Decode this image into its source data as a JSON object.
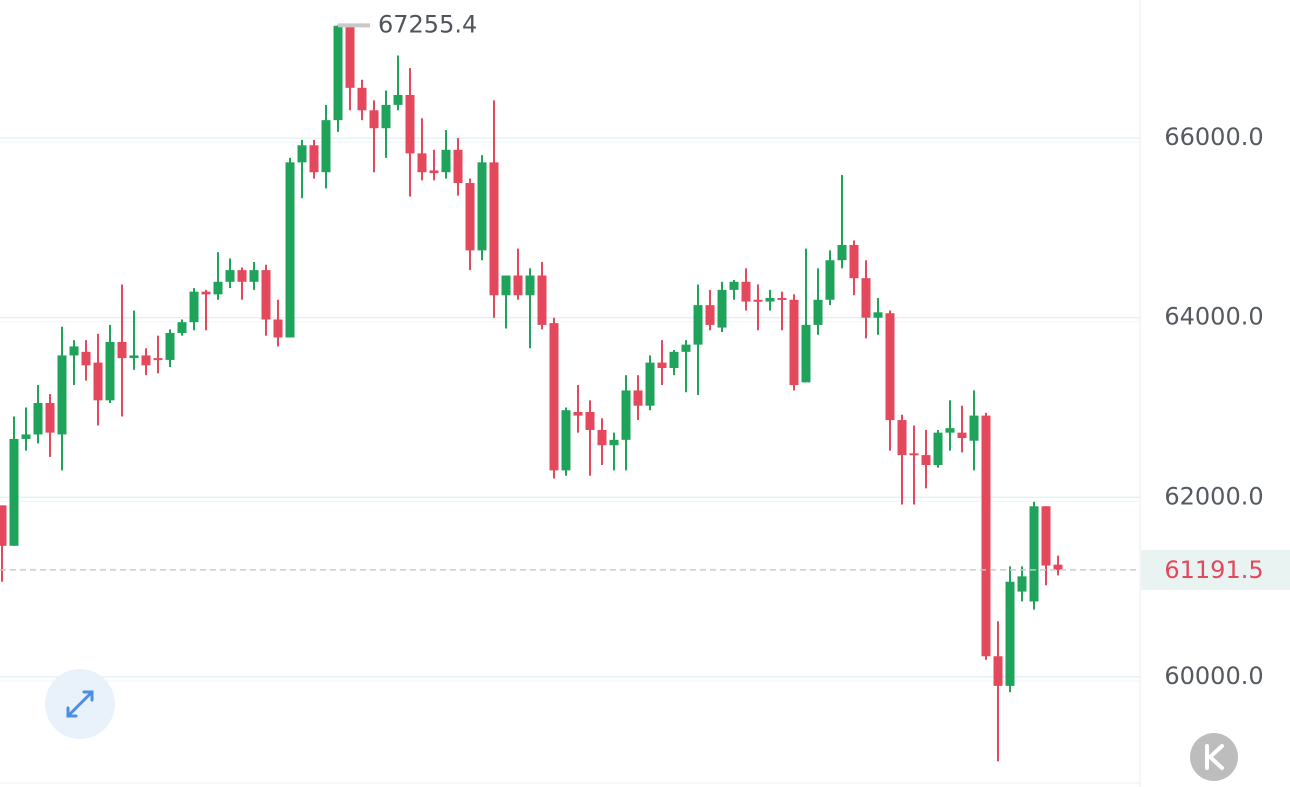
{
  "chart_data": {
    "type": "candlestick",
    "up_color": "#1fa35a",
    "down_color": "#e4485c",
    "ylim": [
      58774,
      67538
    ],
    "yticks": [
      {
        "value": 60000,
        "label": "60000.0"
      },
      {
        "value": 62000,
        "label": "62000.0"
      },
      {
        "value": 64000,
        "label": "64000.0"
      },
      {
        "value": 66000,
        "label": "66000.0"
      }
    ],
    "grid": true,
    "high_price": 67255.4,
    "last_price": 61191.5,
    "candles": {
      "open": [
        61910,
        61460,
        62650,
        62700,
        63050,
        62700,
        63580,
        63620,
        63500,
        63080,
        63730,
        63550,
        63580,
        63550,
        63530,
        63830,
        63950,
        64290,
        64260,
        64400,
        64530,
        64400,
        64530,
        63980,
        63780,
        65730,
        65920,
        65620,
        66200,
        67250,
        66560,
        66310,
        66110,
        66370,
        66480,
        65830,
        65640,
        65620,
        65870,
        65500,
        64750,
        65730,
        64250,
        64470,
        64250,
        64470,
        63940,
        62300,
        62950,
        62950,
        62750,
        62580,
        62640,
        63190,
        63020,
        63500,
        63440,
        63620,
        63700,
        64140,
        63890,
        64310,
        64400,
        64200,
        64180,
        64220,
        64200,
        63280,
        63920,
        64200,
        64640,
        64810,
        64440,
        64000,
        64050,
        62860,
        62490,
        62470,
        62360,
        62720,
        62720,
        62630,
        62910,
        60230,
        59900,
        60950,
        60840,
        61900,
        61250
      ],
      "high": [
        61910,
        62900,
        63000,
        63250,
        63150,
        63900,
        63750,
        63750,
        63820,
        63920,
        64370,
        64080,
        63660,
        63800,
        63870,
        63980,
        64330,
        64310,
        64730,
        64660,
        64560,
        64620,
        64590,
        64200,
        65780,
        65980,
        65980,
        66370,
        67255.4,
        67250,
        66650,
        66420,
        66530,
        66920,
        66780,
        66220,
        65870,
        66090,
        66000,
        65550,
        65810,
        66420,
        64470,
        64770,
        64550,
        64620,
        64000,
        63000,
        63250,
        63080,
        62880,
        62720,
        63360,
        63360,
        63580,
        63750,
        63640,
        63750,
        64370,
        64310,
        64400,
        64420,
        64550,
        64370,
        64310,
        64290,
        64260,
        64770,
        64550,
        64750,
        65590,
        64860,
        64640,
        64220,
        64080,
        62920,
        62800,
        62750,
        62750,
        63080,
        63020,
        63190,
        62940,
        60620,
        61230,
        61230,
        61950,
        61900,
        61350
      ],
      "low": [
        61060,
        61460,
        62520,
        62600,
        62450,
        62300,
        63250,
        63300,
        62800,
        63050,
        62900,
        63420,
        63360,
        63380,
        63450,
        63800,
        63860,
        63860,
        64200,
        64330,
        64200,
        64310,
        63800,
        63680,
        63780,
        65330,
        65550,
        65440,
        66070,
        66310,
        66200,
        65620,
        65780,
        66310,
        65350,
        65530,
        65530,
        65550,
        65360,
        64530,
        64640,
        64000,
        63880,
        64200,
        63660,
        63870,
        62210,
        62240,
        62720,
        62240,
        62360,
        62300,
        62300,
        62860,
        62970,
        63250,
        63360,
        63170,
        63140,
        63860,
        63840,
        64200,
        64080,
        63860,
        64080,
        63860,
        63190,
        63280,
        63810,
        64140,
        64550,
        64250,
        63770,
        63810,
        62520,
        61920,
        61920,
        62100,
        62330,
        62520,
        62500,
        62300,
        60190,
        59060,
        59830,
        60840,
        60750,
        61020,
        61130
      ],
      "close": [
        61460,
        62650,
        62700,
        63050,
        62720,
        63580,
        63680,
        63470,
        63080,
        63730,
        63550,
        63580,
        63470,
        63530,
        63830,
        63950,
        64290,
        64260,
        64400,
        64530,
        64400,
        64530,
        63980,
        63780,
        65730,
        65920,
        65620,
        66200,
        67250,
        66560,
        66310,
        66110,
        66370,
        66480,
        65830,
        65620,
        65610,
        65870,
        65500,
        64750,
        65730,
        64250,
        64470,
        64250,
        64470,
        63920,
        62300,
        62970,
        62910,
        62750,
        62580,
        62640,
        63190,
        63020,
        63500,
        63440,
        63620,
        63700,
        64140,
        63920,
        64310,
        64400,
        64180,
        64180,
        64220,
        64200,
        63250,
        63920,
        64200,
        64640,
        64810,
        64440,
        64000,
        64060,
        62860,
        62470,
        62470,
        62360,
        62720,
        62770,
        62660,
        62910,
        60230,
        59900,
        61060,
        61120,
        61900,
        61240,
        61191.5
      ]
    }
  }
}
